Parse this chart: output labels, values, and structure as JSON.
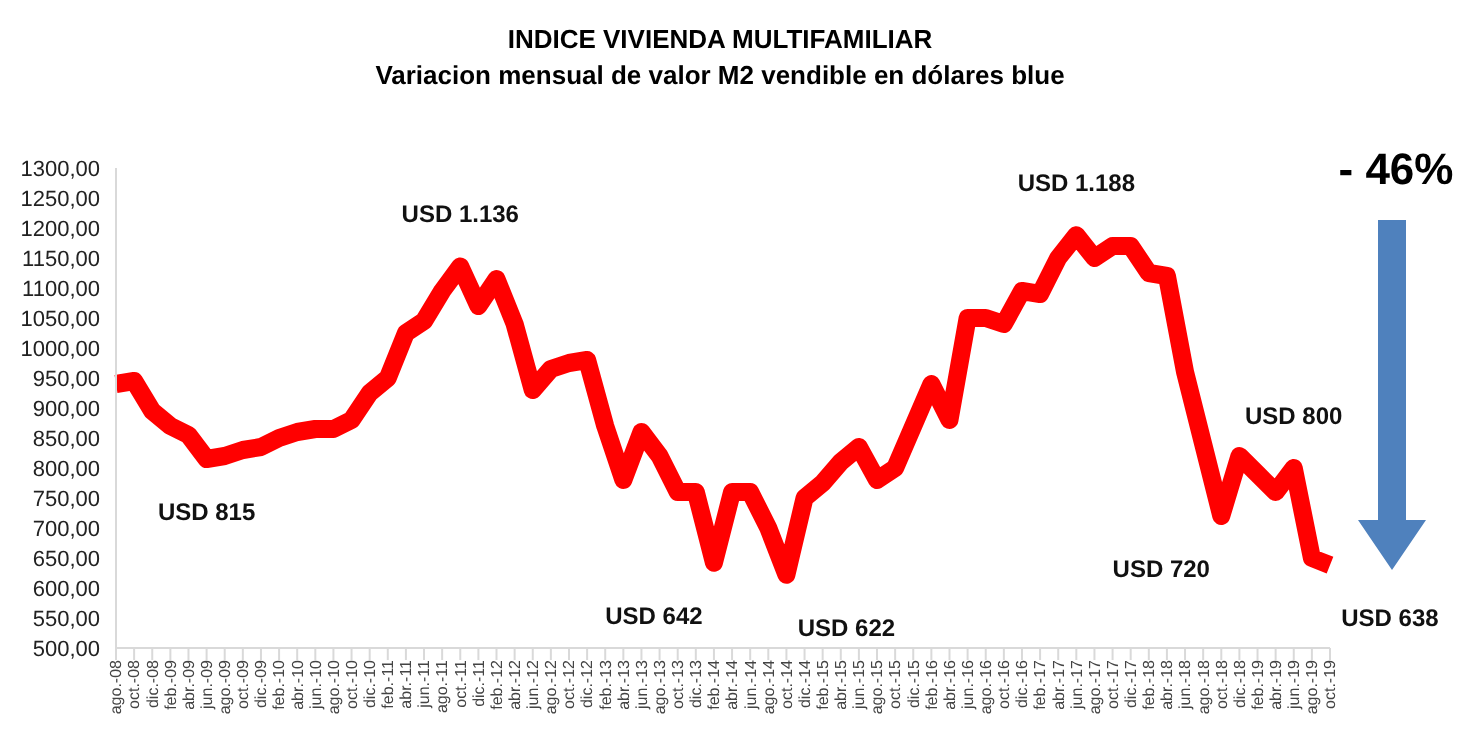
{
  "chart_data": {
    "type": "line",
    "title": "INDICE VIVIENDA MULTIFAMILIAR",
    "subtitle": "Variacion mensual de valor M2 vendible en dólares blue",
    "categories": [
      "ago.-08",
      "oct.-08",
      "dic.-08",
      "feb.-09",
      "abr.-09",
      "jun.-09",
      "ago.-09",
      "oct.-09",
      "dic.-09",
      "feb.-10",
      "abr.-10",
      "jun.-10",
      "ago.-10",
      "oct.-10",
      "dic.-10",
      "feb.-11",
      "abr.-11",
      "jun.-11",
      "ago.-11",
      "oct.-11",
      "dic.-11",
      "feb.-12",
      "abr.-12",
      "jun.-12",
      "ago.-12",
      "oct.-12",
      "dic.-12",
      "feb.-13",
      "abr.-13",
      "jun.-13",
      "ago.-13",
      "oct.-13",
      "dic.-13",
      "feb.-14",
      "abr.-14",
      "jun.-14",
      "ago.-14",
      "oct.-14",
      "dic.-14",
      "feb.-15",
      "abr.-15",
      "jun.-15",
      "ago.-15",
      "oct.-15",
      "dic.-15",
      "feb.-16",
      "abr.-16",
      "jun.-16",
      "ago.-16",
      "oct.-16",
      "dic.-16",
      "feb.-17",
      "abr.-17",
      "jun.-17",
      "ago.-17",
      "oct.-17",
      "dic.-17",
      "feb.-18",
      "abr.-18",
      "jun.-18",
      "ago.-18",
      "oct.-18",
      "dic.-18",
      "feb.-19",
      "abr.-19",
      "jun.-19",
      "ago.-19",
      "oct.-19"
    ],
    "series": [
      {
        "color": "#ff0000",
        "values": [
          940,
          945,
          895,
          870,
          855,
          815,
          820,
          830,
          835,
          850,
          860,
          865,
          865,
          880,
          925,
          950,
          1025,
          1045,
          1095,
          1136,
          1070,
          1115,
          1040,
          930,
          965,
          975,
          980,
          870,
          780,
          860,
          820,
          760,
          760,
          642,
          760,
          760,
          700,
          622,
          750,
          775,
          810,
          835,
          780,
          800,
          870,
          940,
          880,
          1050,
          1050,
          1040,
          1095,
          1090,
          1150,
          1188,
          1150,
          1170,
          1170,
          1125,
          1120,
          960,
          840,
          720,
          820,
          790,
          760,
          800,
          650,
          638
        ]
      }
    ],
    "ylim": [
      500,
      1300
    ],
    "yticks": [
      {
        "value": 500,
        "label": "500,00"
      },
      {
        "value": 550,
        "label": "550,00"
      },
      {
        "value": 600,
        "label": "600,00"
      },
      {
        "value": 650,
        "label": "650,00"
      },
      {
        "value": 700,
        "label": "700,00"
      },
      {
        "value": 750,
        "label": "750,00"
      },
      {
        "value": 800,
        "label": "800,00"
      },
      {
        "value": 850,
        "label": "850,00"
      },
      {
        "value": 900,
        "label": "900,00"
      },
      {
        "value": 950,
        "label": "950,00"
      },
      {
        "value": 1000,
        "label": "1000,00"
      },
      {
        "value": 1050,
        "label": "1050,00"
      },
      {
        "value": 1100,
        "label": "1100,00"
      },
      {
        "value": 1150,
        "label": "1150,00"
      },
      {
        "value": 1200,
        "label": "1200,00"
      },
      {
        "value": 1250,
        "label": "1250,00"
      },
      {
        "value": 1300,
        "label": "1300,00"
      }
    ],
    "grid": false,
    "marker": "none",
    "line_style": "solid",
    "annotations": [
      {
        "text": "USD 815",
        "x": "jun.-09",
        "y": 815
      },
      {
        "text": "USD 1.136",
        "x": "oct.-11",
        "y": 1136
      },
      {
        "text": "USD 642",
        "x": "feb.-14",
        "y": 642
      },
      {
        "text": "USD 622",
        "x": "oct.-14",
        "y": 622
      },
      {
        "text": "USD 1.188",
        "x": "jun.-17",
        "y": 1188
      },
      {
        "text": "USD 720",
        "x": "oct.-18",
        "y": 720
      },
      {
        "text": "USD 800",
        "x": "jun.-19",
        "y": 800
      },
      {
        "text": "USD 638",
        "x": "oct.-19",
        "y": 638
      },
      "- 46%"
    ]
  }
}
